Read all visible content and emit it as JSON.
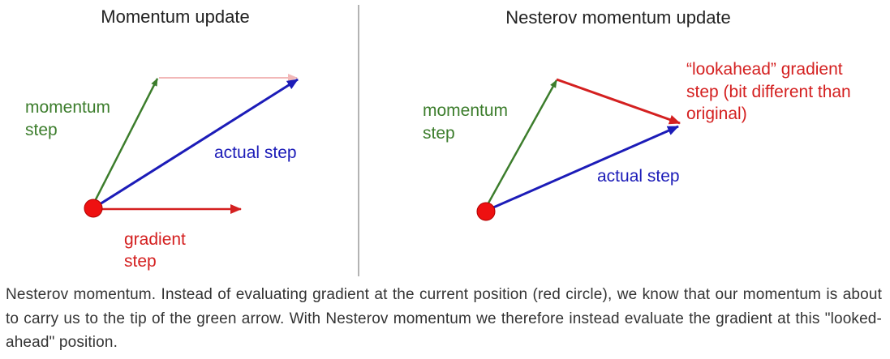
{
  "left_panel": {
    "title": "Momentum update",
    "labels": {
      "momentum_line1": "momentum",
      "momentum_line2": "step",
      "actual": "actual step",
      "gradient_line1": "gradient",
      "gradient_line2": "step"
    }
  },
  "right_panel": {
    "title": "Nesterov momentum update",
    "labels": {
      "momentum_line1": "momentum",
      "momentum_line2": "step",
      "actual": "actual step",
      "lookahead_line1": "“lookahead” gradient",
      "lookahead_line2": "step (bit different than",
      "lookahead_line3": "original)"
    }
  },
  "colors": {
    "momentum": "#3c7d2c",
    "actual": "#1c1cb8",
    "gradient": "#d42020",
    "ghost_gradient": "#f2b8b8",
    "divider": "#9a9a9a"
  },
  "caption": "Nesterov momentum. Instead of evaluating gradient at the current position (red circle), we know that our momentum is about to carry us to the tip of the green arrow. With Nesterov momentum we therefore instead evaluate the gradient at this \"looked-ahead\" position."
}
